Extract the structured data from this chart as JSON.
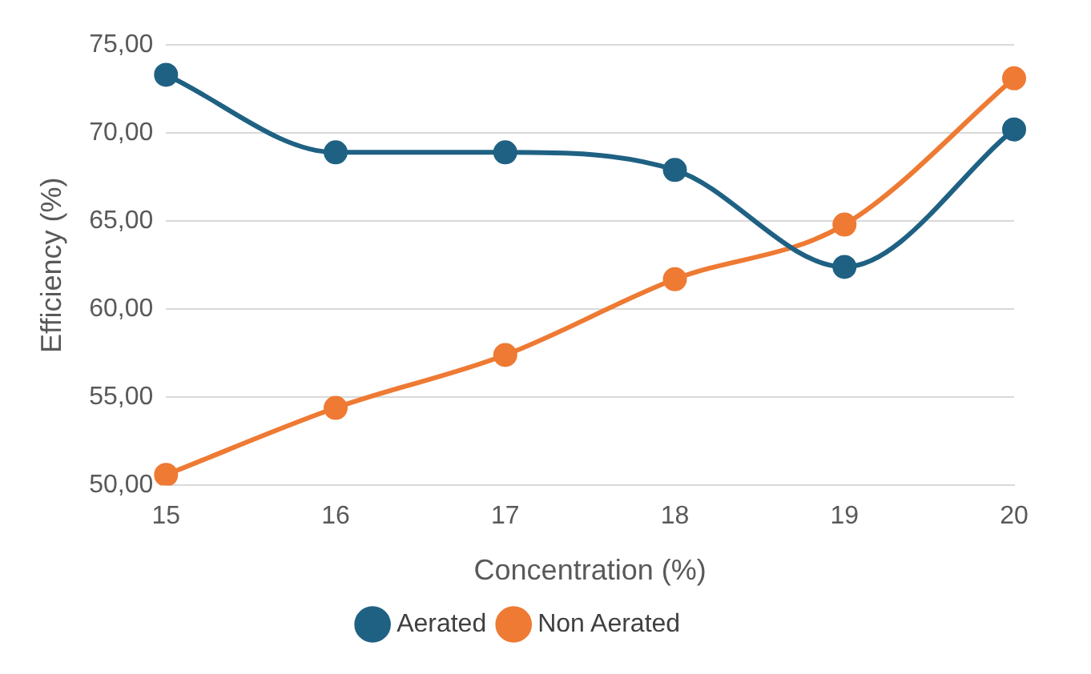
{
  "chart_data": {
    "type": "line",
    "xlabel": "Concentration (%)",
    "ylabel": "Efficiency (%)",
    "categories": [
      "15",
      "16",
      "17",
      "18",
      "19",
      "20"
    ],
    "series": [
      {
        "name": "Aerated",
        "color": "#1f6183",
        "values": [
          73.3,
          68.9,
          68.9,
          67.9,
          62.4,
          70.2
        ]
      },
      {
        "name": "Non Aerated",
        "color": "#ee7a33",
        "values": [
          50.6,
          54.4,
          57.4,
          61.7,
          64.8,
          73.1
        ]
      }
    ],
    "ylim": [
      50,
      75
    ],
    "yticks": [
      {
        "value": 50,
        "label": "50,00"
      },
      {
        "value": 55,
        "label": "55,00"
      },
      {
        "value": 60,
        "label": "60,00"
      },
      {
        "value": 65,
        "label": "65,00"
      },
      {
        "value": 70,
        "label": "70,00"
      },
      {
        "value": 75,
        "label": "75,00"
      }
    ],
    "grid": "y",
    "legend": "bottom",
    "marker": "circle",
    "line_style": "solid"
  }
}
